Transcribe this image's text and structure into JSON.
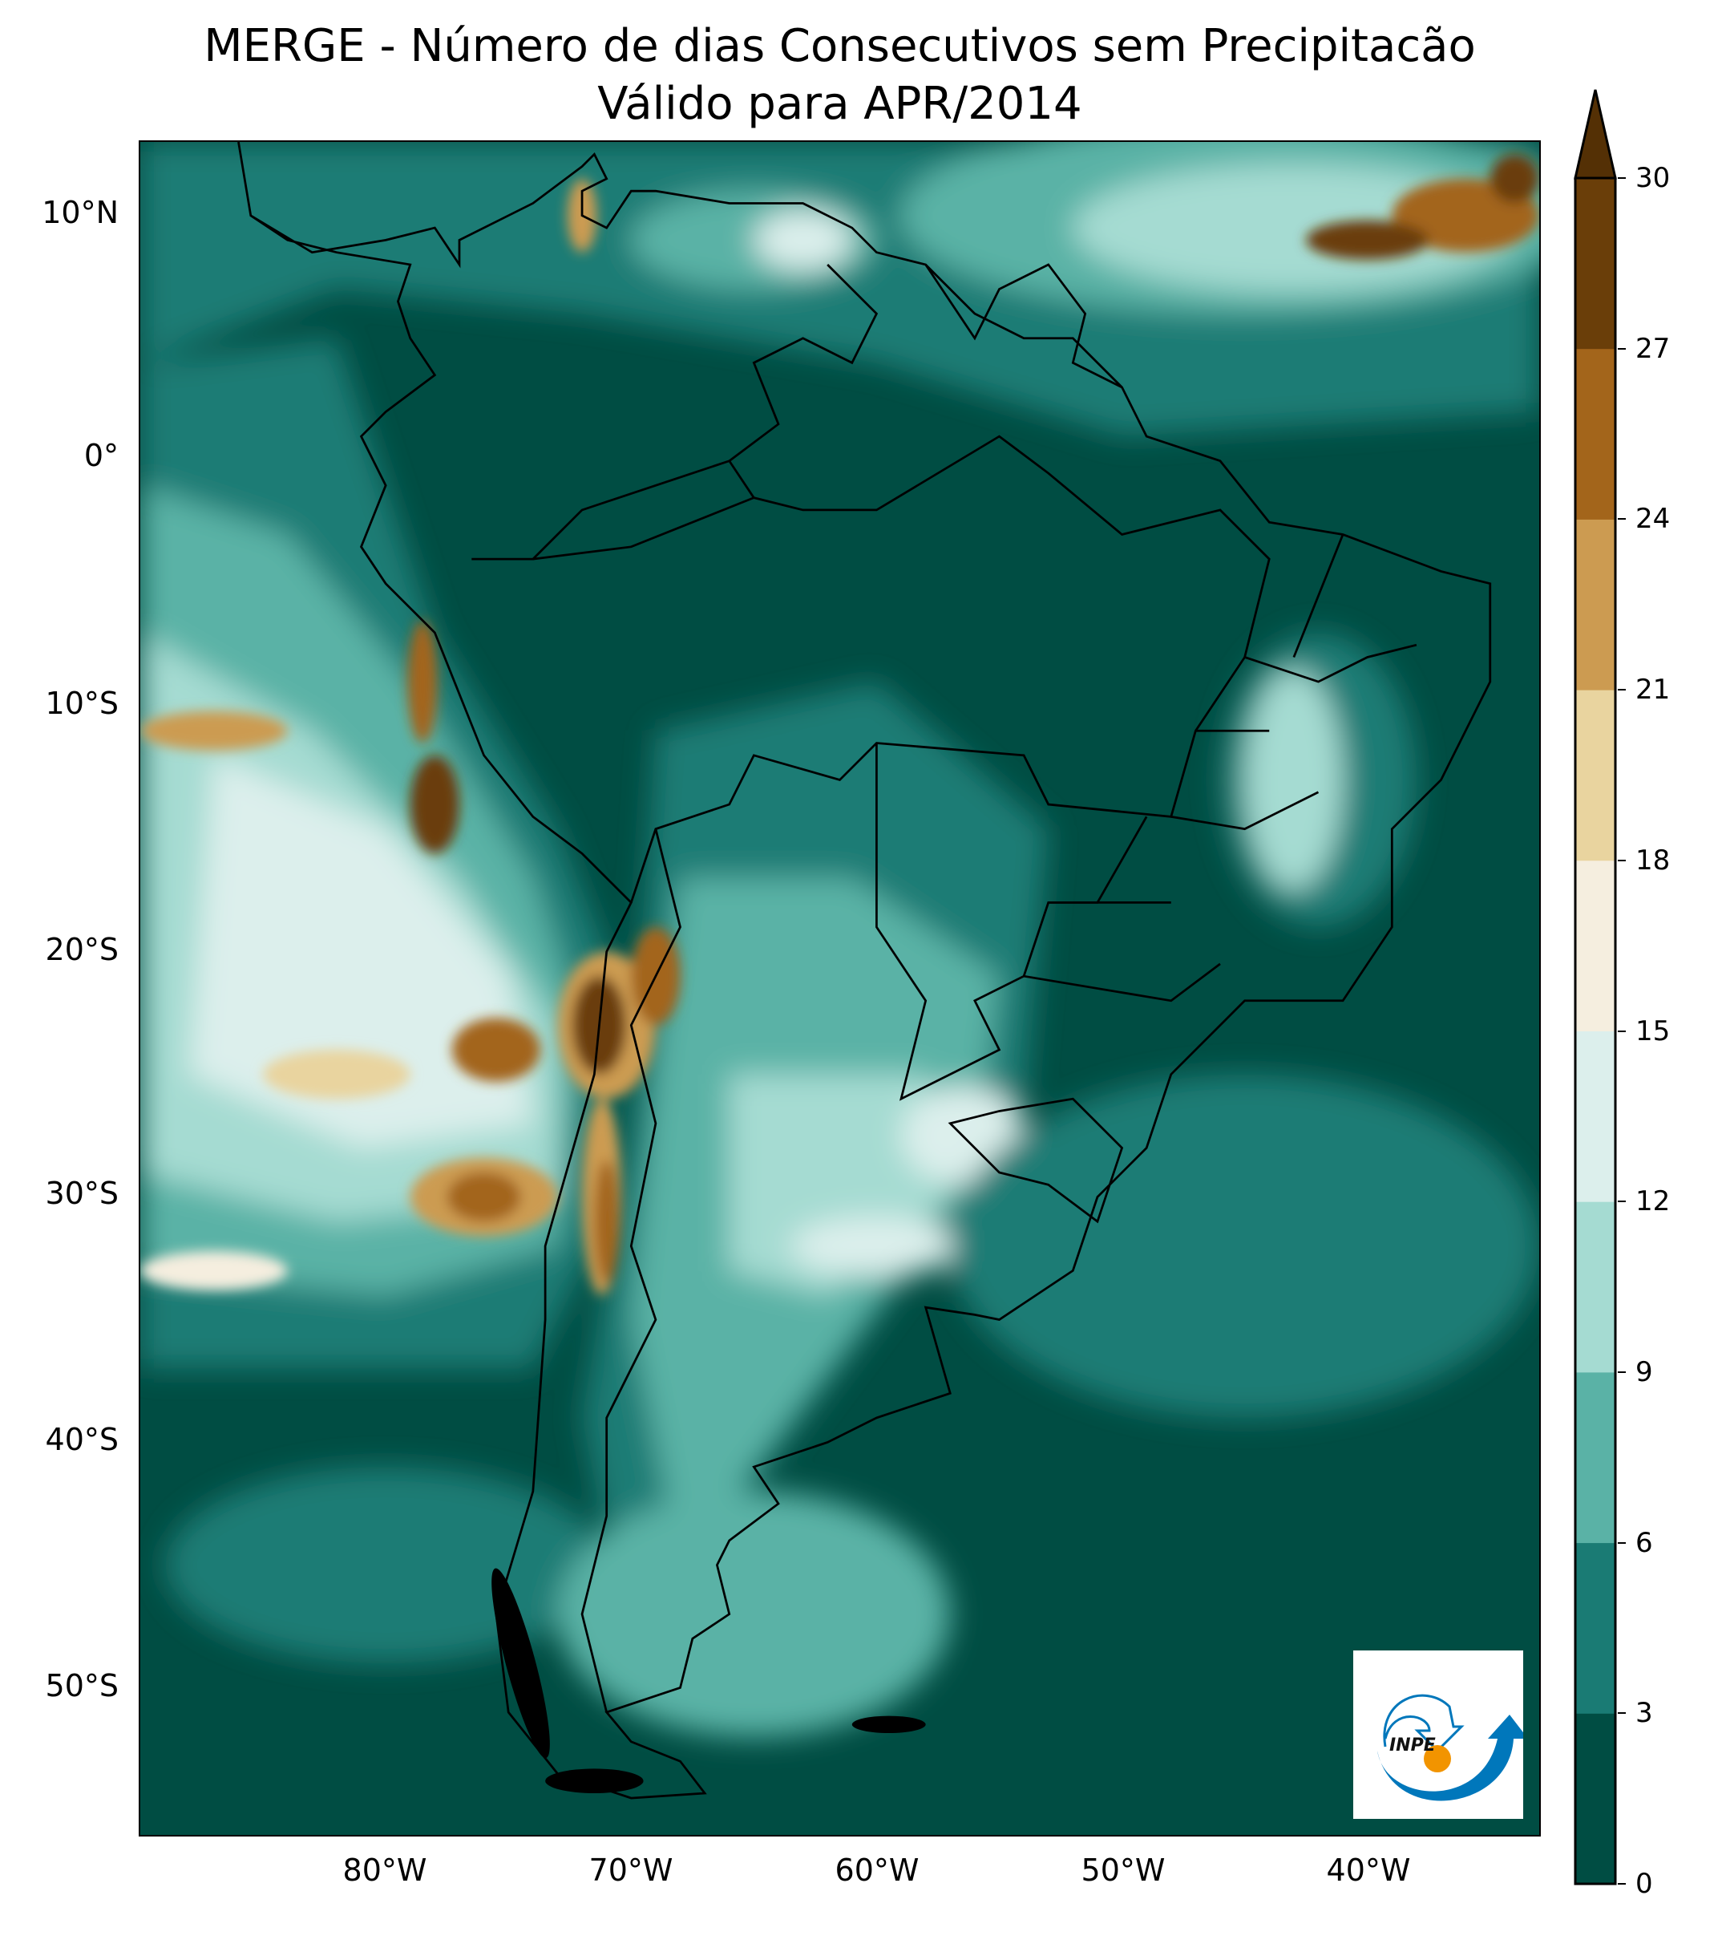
{
  "title": {
    "line1": "MERGE - Número de dias Consecutivos sem Precipitacão",
    "line2": "Válido para APR/2014"
  },
  "map": {
    "extent": {
      "lon": [
        -90,
        -33
      ],
      "lat": [
        -56,
        13
      ]
    },
    "lat_labels": [
      "10°N",
      "0°",
      "10°S",
      "20°S",
      "30°S",
      "40°S",
      "50°S"
    ],
    "lat_values": [
      10,
      0,
      -10,
      -20,
      -30,
      -40,
      -50
    ],
    "lon_labels": [
      "80°W",
      "70°W",
      "60°W",
      "50°W",
      "40°W"
    ],
    "lon_values": [
      -80,
      -70,
      -60,
      -50,
      -40
    ]
  },
  "colorbar": {
    "ticks": [
      "0",
      "3",
      "6",
      "9",
      "12",
      "15",
      "18",
      "21",
      "24",
      "27",
      "30"
    ],
    "colors": [
      "#004d43",
      "#1a7b74",
      "#5ab2a6",
      "#a5dbd2",
      "#dcefec",
      "#f5eedf",
      "#e9d49f",
      "#cc9b51",
      "#a3651b",
      "#6a3e09"
    ],
    "extend_color": "#543005",
    "extend": "max"
  },
  "logo": {
    "text": "INPE",
    "blue": "#0077bb",
    "orange": "#f29400"
  }
}
